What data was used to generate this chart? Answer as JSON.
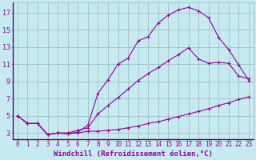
{
  "background_color": "#c5eaf0",
  "grid_color": "#9ab8c0",
  "line_color": "#990099",
  "xlabel": "Windchill (Refroidissement éolien,°C)",
  "xlim": [
    -0.5,
    23.5
  ],
  "ylim": [
    2.3,
    18.2
  ],
  "yticks": [
    3,
    5,
    7,
    9,
    11,
    13,
    15,
    17
  ],
  "xticks": [
    0,
    1,
    2,
    3,
    4,
    5,
    6,
    7,
    8,
    9,
    10,
    11,
    12,
    13,
    14,
    15,
    16,
    17,
    18,
    19,
    20,
    21,
    22,
    23
  ],
  "line1_x": [
    0,
    1,
    2,
    3,
    4,
    5,
    6,
    7,
    8,
    9,
    10,
    11,
    12,
    13,
    14,
    15,
    16,
    17,
    18,
    19,
    20,
    21,
    22,
    23
  ],
  "line1_y": [
    5.0,
    4.1,
    4.1,
    2.8,
    3.0,
    2.9,
    3.0,
    3.2,
    3.2,
    3.3,
    3.4,
    3.6,
    3.8,
    4.1,
    4.3,
    4.6,
    4.9,
    5.2,
    5.5,
    5.8,
    6.2,
    6.5,
    6.9,
    7.2
  ],
  "line2_x": [
    0,
    1,
    2,
    3,
    4,
    5,
    6,
    7,
    8,
    9,
    10,
    11,
    12,
    13,
    14,
    15,
    16,
    17,
    18,
    19,
    20,
    21,
    22,
    23
  ],
  "line2_y": [
    5.0,
    4.1,
    4.1,
    2.8,
    3.0,
    2.9,
    3.1,
    3.9,
    7.6,
    9.2,
    11.0,
    11.7,
    13.7,
    14.2,
    15.8,
    16.7,
    17.3,
    17.6,
    17.2,
    16.4,
    14.1,
    12.7,
    10.9,
    9.1
  ],
  "line3_x": [
    0,
    1,
    2,
    3,
    4,
    5,
    6,
    7,
    8,
    9,
    10,
    11,
    12,
    13,
    14,
    15,
    16,
    17,
    18,
    19,
    20,
    21,
    22,
    23
  ],
  "line3_y": [
    5.0,
    4.1,
    4.1,
    2.8,
    3.0,
    3.0,
    3.3,
    3.6,
    5.2,
    6.2,
    7.1,
    8.1,
    9.1,
    9.9,
    10.6,
    11.4,
    12.1,
    12.9,
    11.6,
    11.1,
    11.2,
    11.1,
    9.6,
    9.3
  ],
  "tick_fontsize": 5.5,
  "xlabel_fontsize": 6.5
}
